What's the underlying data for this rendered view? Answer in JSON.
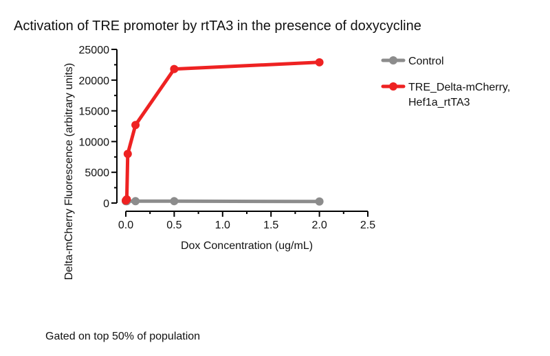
{
  "chart_data": {
    "type": "line",
    "title": "Activation of TRE promoter by rtTA3 in the presence of doxycycline",
    "xlabel": "Dox Concentration (ug/mL)",
    "ylabel": "Delta-mCherry Fluorescence (arbitrary units)",
    "xlim": [
      0,
      2.5
    ],
    "ylim": [
      0,
      25000
    ],
    "x_ticks": [
      "0.0",
      "0.5",
      "1.0",
      "1.5",
      "2.0",
      "2.5"
    ],
    "x_tick_values": [
      0,
      0.5,
      1.0,
      1.5,
      2.0,
      2.5
    ],
    "y_ticks": [
      "0",
      "5000",
      "10000",
      "15000",
      "20000",
      "25000"
    ],
    "y_tick_values": [
      0,
      5000,
      10000,
      15000,
      20000,
      25000
    ],
    "grid": false,
    "legend_position": "top-right",
    "series": [
      {
        "name": "Control",
        "color": "#8c8c8c",
        "x": [
          0,
          0.01,
          0.1,
          0.5,
          2.0
        ],
        "y": [
          300,
          300,
          300,
          300,
          250
        ]
      },
      {
        "name_lines": [
          "TRE_Delta-mCherry,",
          "Hef1a_rtTA3"
        ],
        "color": "#ee2222",
        "x": [
          0,
          0.01,
          0.02,
          0.1,
          0.5,
          2.0
        ],
        "y": [
          400,
          600,
          8000,
          12700,
          21800,
          22900
        ]
      }
    ]
  },
  "footnote": "Gated on top 50% of population"
}
